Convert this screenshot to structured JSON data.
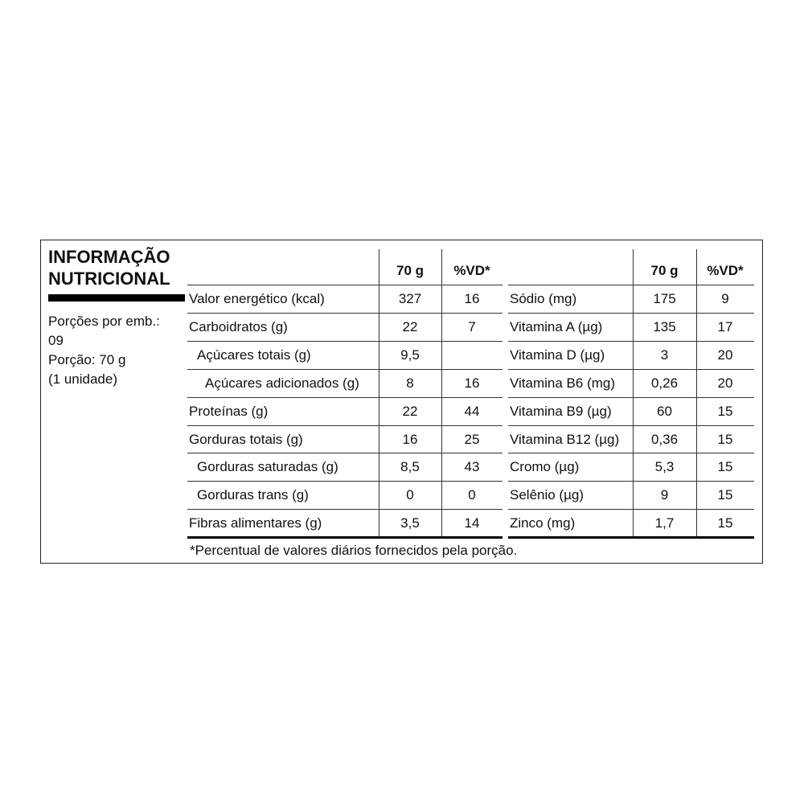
{
  "header": {
    "title": [
      "INFORMAÇÃO",
      "NUTRICIONAL"
    ],
    "serving": [
      "Porções por emb.:",
      "09",
      "Porção: 70 g",
      "(1 unidade)"
    ]
  },
  "table": {
    "columns": [
      "70 g",
      "%VD*"
    ],
    "left": [
      [
        "Valor energético (kcal)",
        "327",
        "16"
      ],
      [
        "Carboidratos (g)",
        "22",
        "7"
      ],
      [
        "Açúcares totais (g)",
        "9,5",
        null
      ],
      [
        "Açúcares adicionados (g)",
        "8",
        "16"
      ],
      [
        "Proteínas (g)",
        "22",
        "44"
      ],
      [
        "Gorduras totais (g)",
        "16",
        "25"
      ],
      [
        "Gorduras saturadas (g)",
        "8,5",
        "43"
      ],
      [
        "Gorduras trans (g)",
        "0",
        "0"
      ],
      [
        "Fibras alimentares (g)",
        "3,5",
        "14"
      ]
    ],
    "right": [
      [
        "Sódio (mg)",
        "175",
        "9"
      ],
      [
        "Vitamina A (µg)",
        "135",
        "17"
      ],
      [
        "Vitamina D (µg)",
        "3",
        "20"
      ],
      [
        "Vitamina B6 (mg)",
        "0,26",
        "20"
      ],
      [
        "Vitamina B9 (µg)",
        "60",
        "15"
      ],
      [
        "Vitamina B12 (µg)",
        "0,36",
        "15"
      ],
      [
        "Cromo (µg)",
        "5,3",
        "15"
      ],
      [
        "Selênio (µg)",
        "9",
        "15"
      ],
      [
        "Zinco (mg)",
        "1,7",
        "15"
      ]
    ]
  },
  "footnote": "*Percentual de valores diários fornecidos pela porção."
}
